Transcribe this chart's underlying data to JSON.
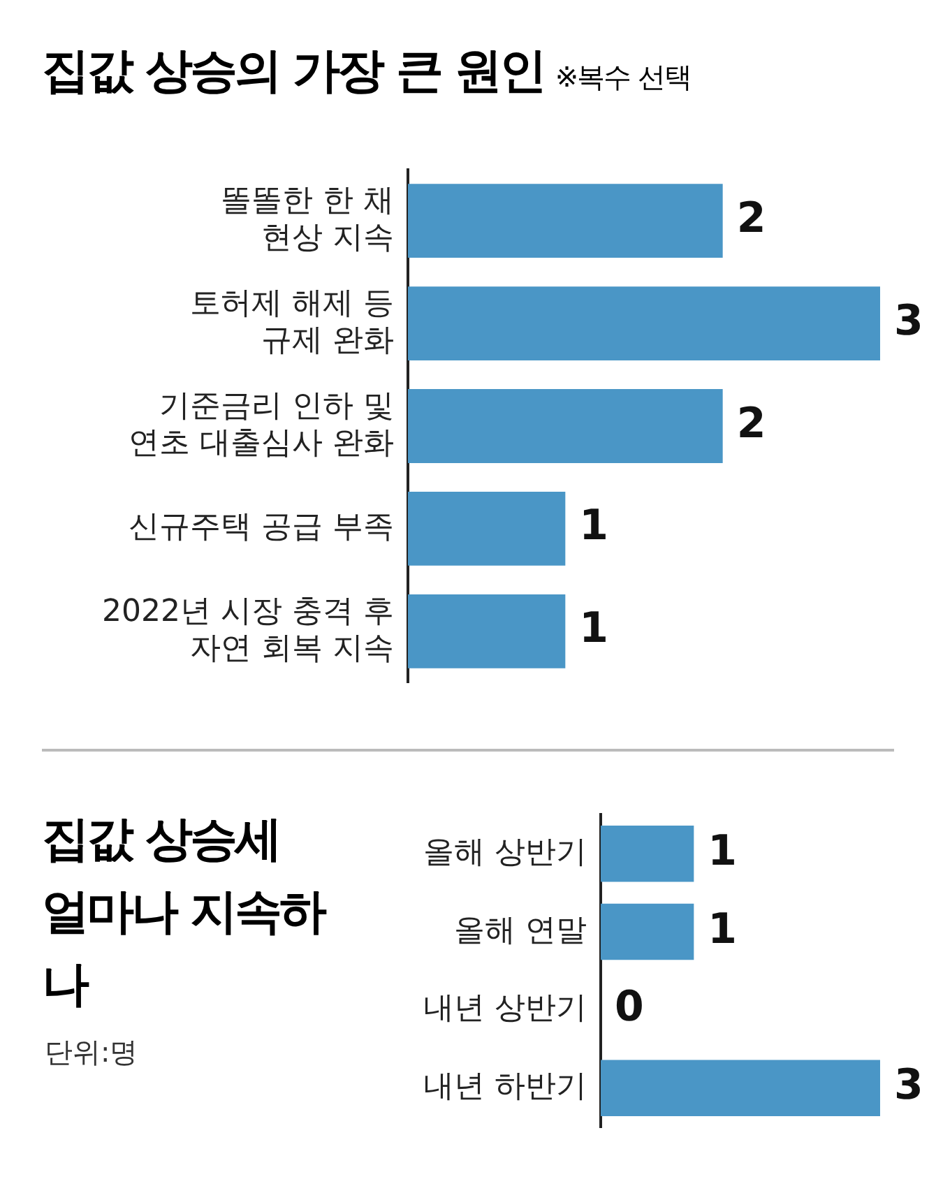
{
  "chart_data": [
    {
      "type": "bar",
      "orientation": "horizontal",
      "title": "집값 상승의 가장 큰 원인",
      "subtitle": "※복수 선택",
      "categories": [
        "똘똘한 한 채\n현상 지속",
        "토허제 해제 등\n규제 완화",
        "기준금리 인하 및\n연초 대출심사 완화",
        "신규주택 공급 부족",
        "2022년 시장 충격 후\n자연 회복 지속"
      ],
      "values": [
        2,
        3,
        2,
        1,
        1
      ],
      "color": "#4a96c6",
      "xlim": [
        0,
        3
      ],
      "data_labels": true,
      "grid": false,
      "legend": false,
      "tick_labels": "y"
    },
    {
      "type": "bar",
      "orientation": "horizontal",
      "title": "집값 상승세 얼마나 지속하나",
      "annotations": [
        "단위:명"
      ],
      "categories": [
        "올해 상반기",
        "올해 연말",
        "내년 상반기",
        "내년 하반기"
      ],
      "values": [
        1,
        1,
        0,
        3
      ],
      "color": "#4a96c6",
      "xlim": [
        0,
        3
      ],
      "data_labels": true,
      "grid": false,
      "legend": false,
      "tick_labels": "y"
    }
  ]
}
